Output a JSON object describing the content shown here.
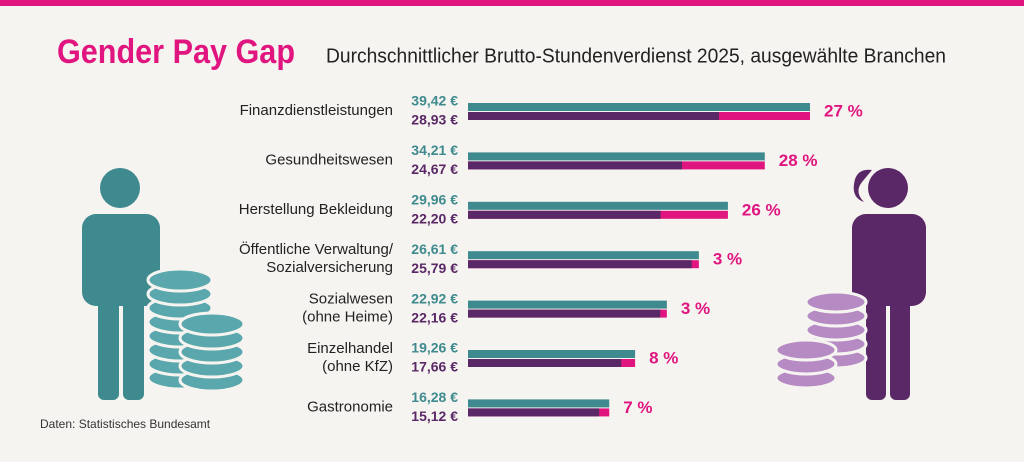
{
  "chart_data": {
    "type": "bar",
    "title": "Gender Pay Gap",
    "subtitle": "Durchschnittlicher Brutto-Stundenverdienst 2025, ausgewählte Branchen",
    "source": "Daten: Statistisches Bundesamt",
    "categories": [
      [
        "Finanzdienstleistungen"
      ],
      [
        "Gesundheitswesen"
      ],
      [
        "Herstellung Bekleidung"
      ],
      [
        "Öffentliche Verwaltung/",
        "Sozialversicherung"
      ],
      [
        "Sozialwesen",
        "(ohne Heime)"
      ],
      [
        "Einzelhandel",
        "(ohne KfZ)"
      ],
      [
        "Gastronomie"
      ]
    ],
    "series": [
      {
        "color": "#3e8a8e",
        "values": [
          39.42,
          34.21,
          29.96,
          26.61,
          22.92,
          19.26,
          16.28
        ],
        "value_labels": [
          "39,42 €",
          "34,21 €",
          "29,96 €",
          "26,61 €",
          "22,92 €",
          "19,26 €",
          "16,28 €"
        ]
      },
      {
        "color": "#5a2866",
        "values": [
          28.93,
          24.67,
          22.2,
          25.79,
          22.16,
          17.66,
          15.12
        ],
        "value_labels": [
          "28,93 €",
          "24,67 €",
          "22,20 €",
          "25,79 €",
          "22,16 €",
          "17,66 €",
          "15,12 €"
        ]
      }
    ],
    "gap": {
      "color": "#e0157f",
      "values": [
        27,
        28,
        26,
        3,
        3,
        8,
        7
      ],
      "value_labels": [
        "27 %",
        "28 %",
        "26 %",
        "3 %",
        "3 %",
        "8 %",
        "7 %"
      ]
    }
  }
}
